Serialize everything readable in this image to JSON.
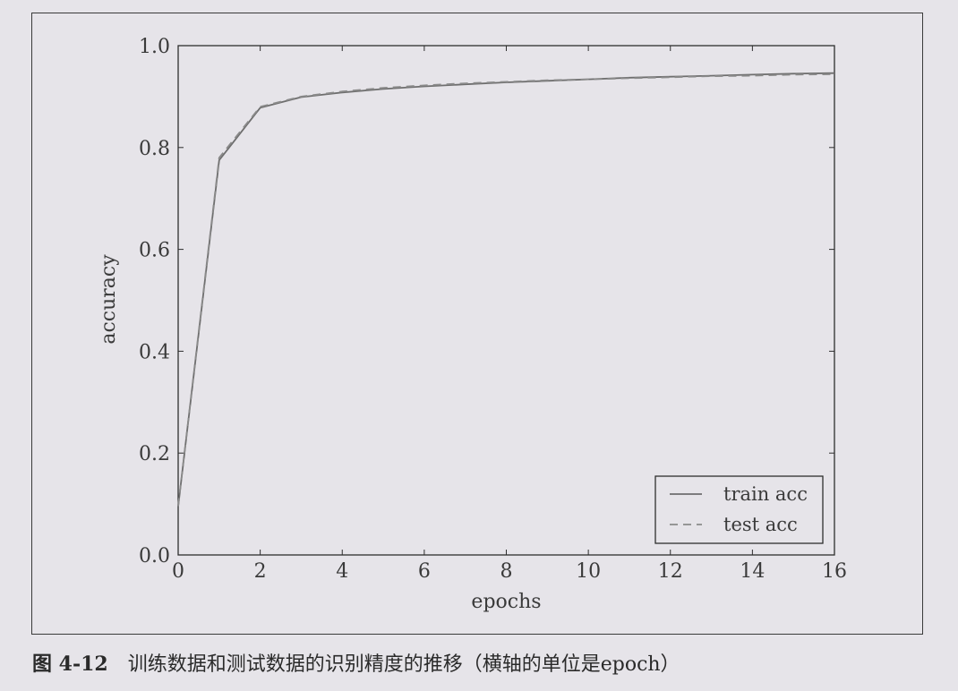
{
  "caption": {
    "figure_number": "图 4-12",
    "text": "训练数据和测试数据的识别精度的推移（横轴的单位是epoch）"
  },
  "chart_data": {
    "type": "line",
    "xlabel": "epochs",
    "ylabel": "accuracy",
    "xlim": [
      0,
      16
    ],
    "ylim": [
      0.0,
      1.0
    ],
    "xticks": [
      "0",
      "2",
      "4",
      "6",
      "8",
      "10",
      "12",
      "14",
      "16"
    ],
    "yticks": [
      "0.0",
      "0.2",
      "0.4",
      "0.6",
      "0.8",
      "1.0"
    ],
    "grid": false,
    "legend_position": "bottom-right",
    "series": [
      {
        "name": "train acc",
        "style": "solid",
        "color": "#6e6e6e",
        "x": [
          0,
          1,
          2,
          3,
          4,
          5,
          6,
          7,
          8,
          9,
          10,
          11,
          12,
          13,
          14,
          15,
          16
        ],
        "y": [
          0.095,
          0.775,
          0.878,
          0.899,
          0.908,
          0.915,
          0.92,
          0.924,
          0.928,
          0.931,
          0.934,
          0.937,
          0.939,
          0.941,
          0.943,
          0.945,
          0.946
        ]
      },
      {
        "name": "test acc",
        "style": "dashed",
        "color": "#8a8a8a",
        "x": [
          0,
          1,
          2,
          3,
          4,
          5,
          6,
          7,
          8,
          9,
          10,
          11,
          12,
          13,
          14,
          15,
          16
        ],
        "y": [
          0.096,
          0.78,
          0.88,
          0.9,
          0.91,
          0.917,
          0.922,
          0.926,
          0.929,
          0.932,
          0.934,
          0.936,
          0.938,
          0.94,
          0.941,
          0.943,
          0.944
        ]
      }
    ]
  }
}
